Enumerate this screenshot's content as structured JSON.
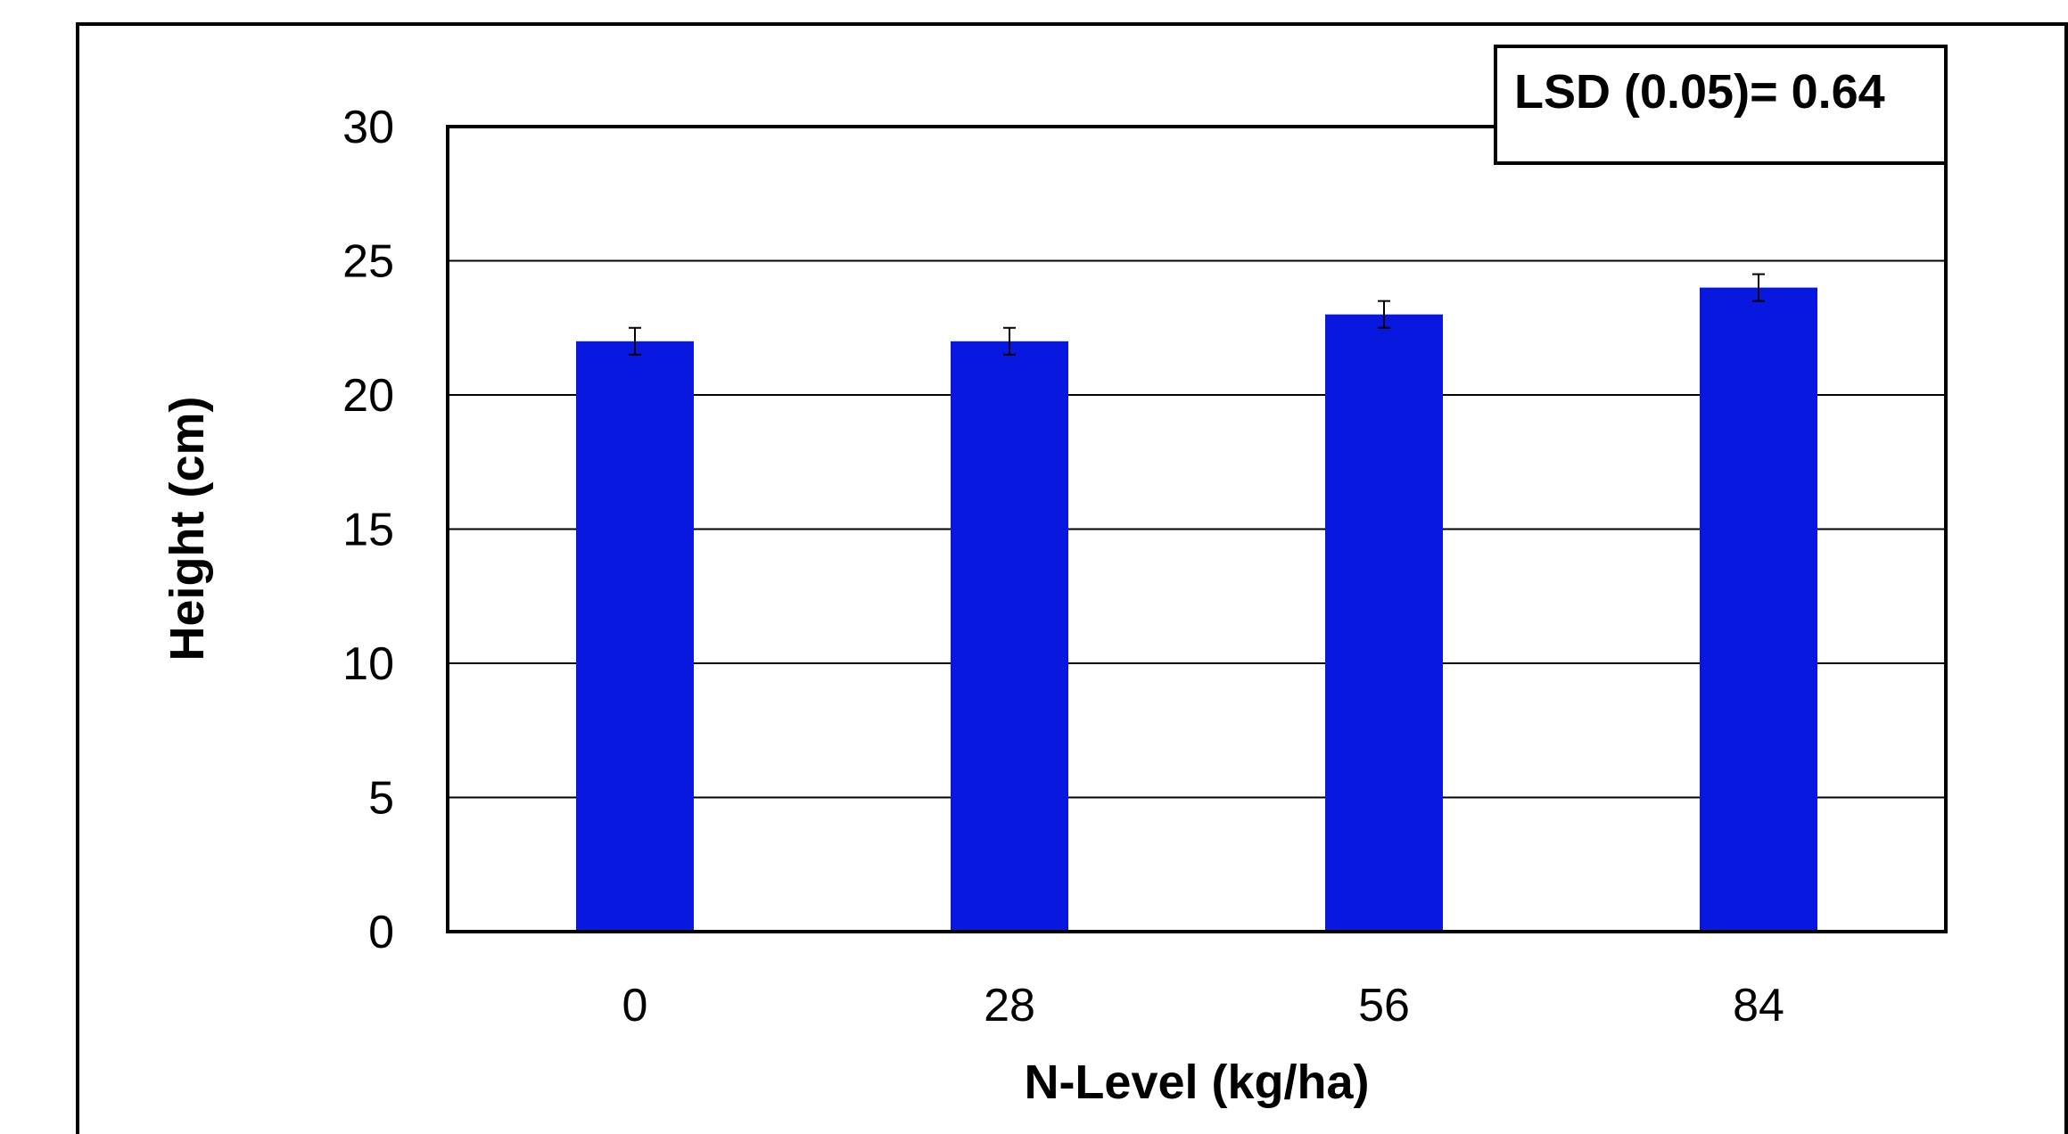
{
  "chart_data": {
    "type": "bar",
    "categories": [
      "0",
      "28",
      "56",
      "84"
    ],
    "values": [
      22,
      22,
      23,
      24
    ],
    "error_bars": [
      0.5,
      0.5,
      0.5,
      0.5
    ],
    "xlabel": "N-Level (kg/ha)",
    "ylabel": "Height (cm)",
    "ylim": [
      0,
      30
    ],
    "yticks": [
      0,
      5,
      10,
      15,
      20,
      25,
      30
    ],
    "grid": true,
    "bar_color": "#0818DF",
    "annotation": "LSD (0.05)=  0.64"
  }
}
